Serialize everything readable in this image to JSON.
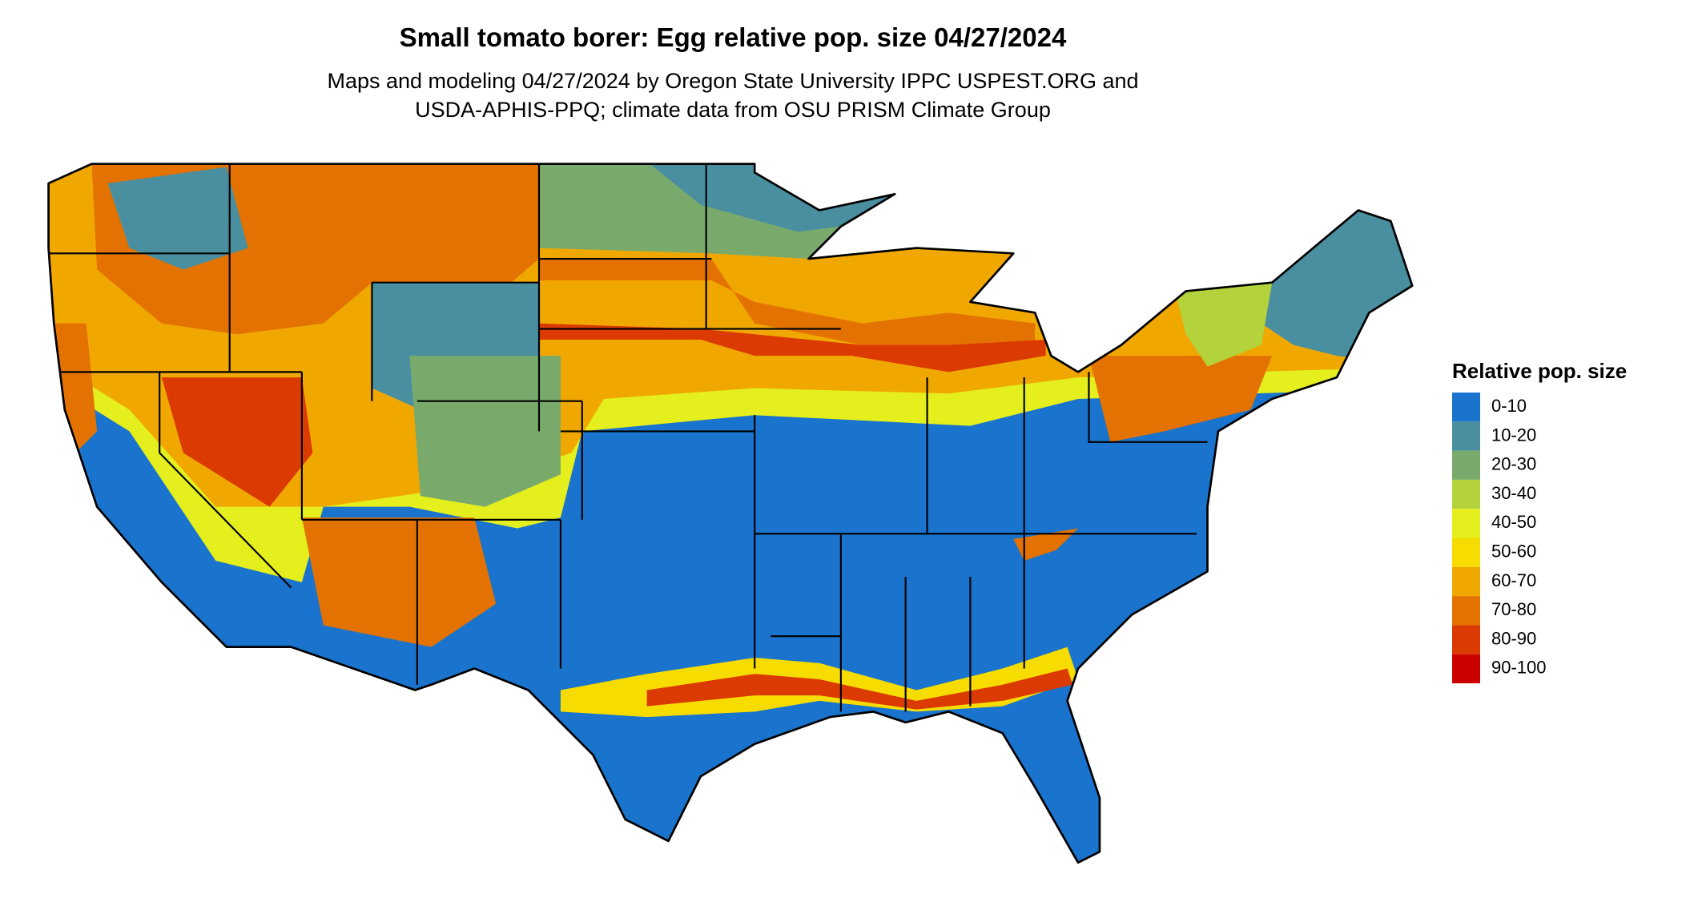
{
  "header": {
    "title": "Small tomato borer: Egg relative pop. size 04/27/2024",
    "subtitle": [
      "Maps and modeling 04/27/2024 by Oregon State University IPPC USPEST.ORG and",
      "USDA-APHIS-PPQ; climate data from OSU PRISM Climate Group"
    ]
  },
  "legend": {
    "title": "Relative pop. size",
    "items": [
      {
        "label": "0-10",
        "color": "#1a73cc"
      },
      {
        "label": "10-20",
        "color": "#4a8fa0"
      },
      {
        "label": "20-30",
        "color": "#79aa6c"
      },
      {
        "label": "30-40",
        "color": "#b3d23b"
      },
      {
        "label": "40-50",
        "color": "#e5ef1d"
      },
      {
        "label": "50-60",
        "color": "#f6dc00"
      },
      {
        "label": "60-70",
        "color": "#f0a800"
      },
      {
        "label": "70-80",
        "color": "#e47200"
      },
      {
        "label": "80-90",
        "color": "#db3a00"
      },
      {
        "label": "90-100",
        "color": "#cc0000"
      }
    ]
  }
}
